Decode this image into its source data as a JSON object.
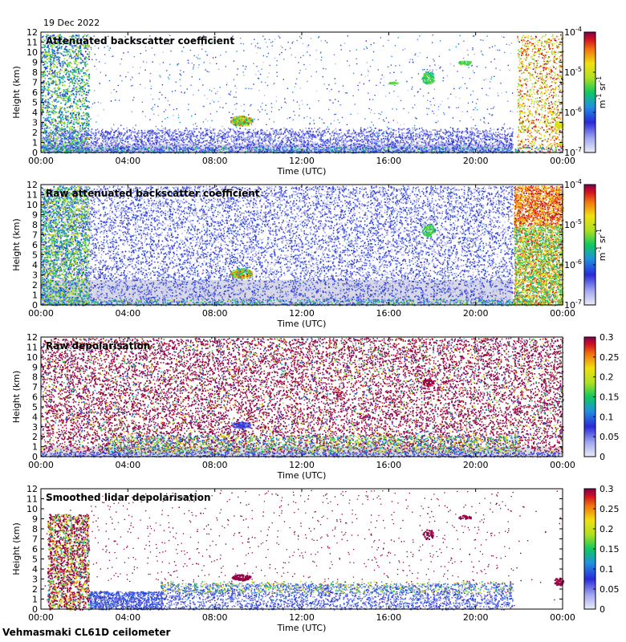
{
  "date": "19 Dec 2022",
  "footer": "Vehmasmaki CL61D ceilometer",
  "chart_data": [
    {
      "type": "heatmap",
      "title": "Attenuated backscatter coefficient",
      "xlabel": "Time (UTC)",
      "ylabel": "Height (km)",
      "x_ticks": [
        "00:00",
        "04:00",
        "08:00",
        "12:00",
        "16:00",
        "20:00",
        "00:00"
      ],
      "y_ticks": [
        "0",
        "1",
        "2",
        "3",
        "4",
        "5",
        "6",
        "7",
        "8",
        "9",
        "10",
        "11",
        "12"
      ],
      "ylim": [
        0,
        12
      ],
      "xlim_hours": [
        0,
        24
      ],
      "colorbar": {
        "scale": "log",
        "ticks": [
          {
            "base": "10",
            "exp": "-4"
          },
          {
            "base": "10",
            "exp": "-5"
          },
          {
            "base": "10",
            "exp": "-6"
          },
          {
            "base": "10",
            "exp": "-7"
          }
        ],
        "unit_base": "m",
        "unit_exp1": "-1",
        "unit_mid": " sr",
        "unit_exp2": "-1"
      },
      "features": [
        {
          "kind": "boundary_layer",
          "t_start": 5.5,
          "t_end": 21.7,
          "h_top": 2.5
        },
        {
          "kind": "cloud",
          "t": 9.2,
          "h": 3.2
        },
        {
          "kind": "cloud",
          "t": 17.8,
          "h": 7.5
        },
        {
          "kind": "precipitation",
          "t_start": 21.7,
          "t_end": 24,
          "h_top": 12
        }
      ]
    },
    {
      "type": "heatmap",
      "title": "Raw attenuated backscatter coefficient",
      "xlabel": "Time (UTC)",
      "ylabel": "Height (km)",
      "x_ticks": [
        "00:00",
        "04:00",
        "08:00",
        "12:00",
        "16:00",
        "20:00",
        "00:00"
      ],
      "y_ticks": [
        "0",
        "1",
        "2",
        "3",
        "4",
        "5",
        "6",
        "7",
        "8",
        "9",
        "10",
        "11",
        "12"
      ],
      "ylim": [
        0,
        12
      ],
      "xlim_hours": [
        0,
        24
      ],
      "colorbar": {
        "scale": "log",
        "ticks": [
          {
            "base": "10",
            "exp": "-4"
          },
          {
            "base": "10",
            "exp": "-5"
          },
          {
            "base": "10",
            "exp": "-6"
          },
          {
            "base": "10",
            "exp": "-7"
          }
        ],
        "unit_base": "m",
        "unit_exp1": "-1",
        "unit_mid": " sr",
        "unit_exp2": "-1"
      }
    },
    {
      "type": "heatmap",
      "title": "Raw depolarisation",
      "xlabel": "Time (UTC)",
      "ylabel": "Height (km)",
      "x_ticks": [
        "00:00",
        "04:00",
        "08:00",
        "12:00",
        "16:00",
        "20:00",
        "00:00"
      ],
      "y_ticks": [
        "0",
        "1",
        "2",
        "3",
        "4",
        "5",
        "6",
        "7",
        "8",
        "9",
        "10",
        "11",
        "12"
      ],
      "ylim": [
        0,
        12
      ],
      "xlim_hours": [
        0,
        24
      ],
      "colorbar": {
        "scale": "linear",
        "ticks": [
          "0.3",
          "0.25",
          "0.2",
          "0.15",
          "0.1",
          "0.05",
          "0"
        ],
        "range": [
          0,
          0.3
        ]
      }
    },
    {
      "type": "heatmap",
      "title": "Smoothed lidar depolarisation",
      "xlabel": "Time (UTC)",
      "ylabel": "Height (km)",
      "x_ticks": [
        "00:00",
        "04:00",
        "08:00",
        "12:00",
        "16:00",
        "20:00",
        "00:00"
      ],
      "y_ticks": [
        "0",
        "1",
        "2",
        "3",
        "4",
        "5",
        "6",
        "7",
        "8",
        "9",
        "10",
        "11",
        "12"
      ],
      "ylim": [
        0,
        12
      ],
      "xlim_hours": [
        0,
        24
      ],
      "colorbar": {
        "scale": "linear",
        "ticks": [
          "0.3",
          "0.25",
          "0.2",
          "0.15",
          "0.1",
          "0.05",
          "0"
        ],
        "range": [
          0,
          0.3
        ]
      }
    }
  ]
}
